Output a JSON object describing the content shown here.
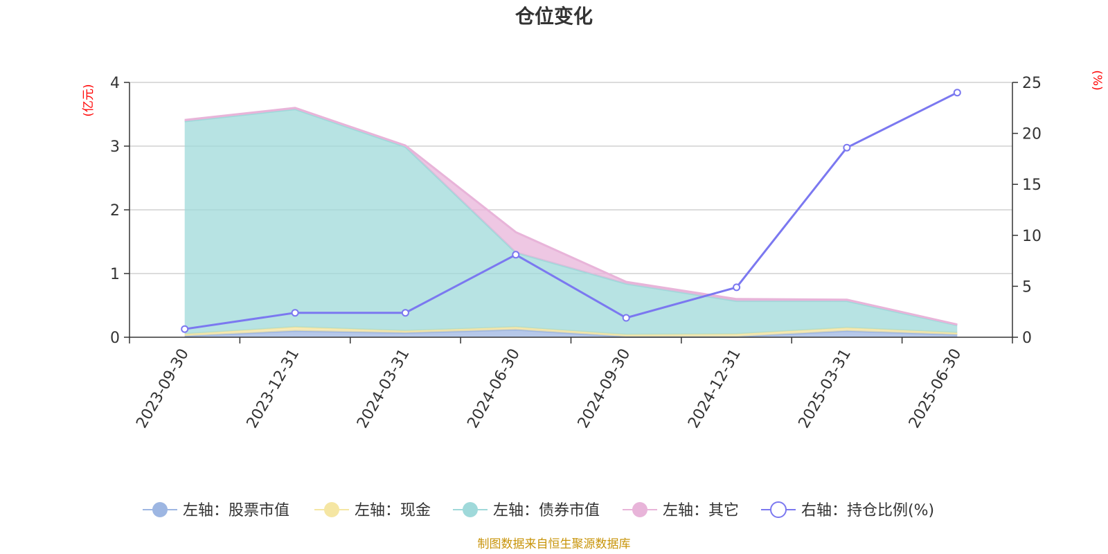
{
  "chart_data": {
    "type": "area",
    "title": "仓位变化",
    "left_axis_unit": "(亿元)",
    "right_axis_unit": "(%)",
    "categories": [
      "2023-09-30",
      "2023-12-31",
      "2024-03-31",
      "2024-06-30",
      "2024-09-30",
      "2024-12-31",
      "2025-03-31",
      "2025-06-30"
    ],
    "left_axis": {
      "min": 0,
      "max": 4,
      "ticks": [
        "0",
        "1",
        "2",
        "3",
        "4"
      ]
    },
    "right_axis": {
      "min": 0,
      "max": 25,
      "ticks": [
        "0",
        "5",
        "10",
        "15",
        "20",
        "25"
      ]
    },
    "stacked": true,
    "grid": true,
    "legend_position": "bottom",
    "series": [
      {
        "name": "左轴：股票市值",
        "axis": "left",
        "color": "#9db6e2",
        "values": [
          0.02,
          0.1,
          0.07,
          0.12,
          0.01,
          0.01,
          0.1,
          0.04
        ]
      },
      {
        "name": "左轴：现金",
        "axis": "left",
        "color": "#f5e6a3",
        "values": [
          0.03,
          0.06,
          0.03,
          0.04,
          0.03,
          0.04,
          0.05,
          0.03
        ]
      },
      {
        "name": "左轴：债券市值",
        "axis": "left",
        "color": "#9fd9da",
        "values": [
          3.34,
          3.42,
          2.89,
          1.17,
          0.8,
          0.52,
          0.42,
          0.12
        ]
      },
      {
        "name": "左轴：其它",
        "axis": "left",
        "color": "#e8b4d9",
        "values": [
          0.02,
          0.02,
          0.02,
          0.32,
          0.03,
          0.03,
          0.02,
          0.01
        ]
      },
      {
        "name": "右轴：持仓比例(%)",
        "axis": "right",
        "color": "#7b78f0",
        "type": "line",
        "values": [
          0.8,
          2.4,
          2.4,
          8.1,
          1.9,
          4.9,
          18.6,
          24.0
        ]
      }
    ],
    "source_note": "制图数据来自恒生聚源数据库"
  }
}
